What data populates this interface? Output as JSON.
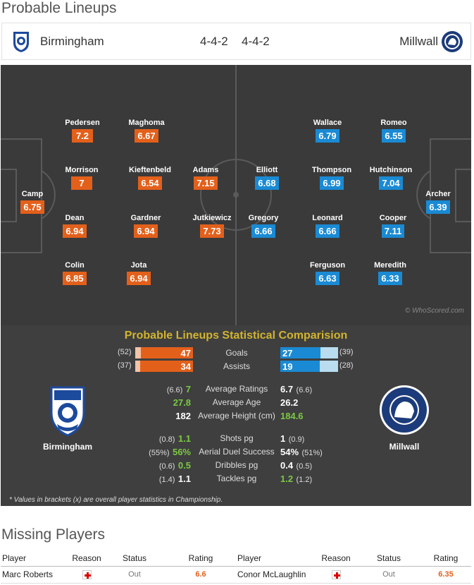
{
  "lineups_title": "Probable Lineups",
  "home_team": {
    "name": "Birmingham",
    "formation": "4-4-2",
    "crest": "birmingham-crest-icon"
  },
  "away_team": {
    "name": "Millwall",
    "formation": "4-4-2",
    "crest": "millwall-crest-icon"
  },
  "home_players": [
    {
      "name": "Pedersen",
      "rating": "7.2"
    },
    {
      "name": "Maghoma",
      "rating": "6.67"
    },
    {
      "name": "Morrison",
      "rating": "7"
    },
    {
      "name": "Kieftenbeld",
      "rating": "6.54"
    },
    {
      "name": "Adams",
      "rating": "7.15"
    },
    {
      "name": "Camp",
      "rating": "6.75"
    },
    {
      "name": "Dean",
      "rating": "6.94"
    },
    {
      "name": "Gardner",
      "rating": "6.94"
    },
    {
      "name": "Jutkiewicz",
      "rating": "7.73"
    },
    {
      "name": "Colin",
      "rating": "6.85"
    },
    {
      "name": "Jota",
      "rating": "6.94"
    }
  ],
  "away_players": [
    {
      "name": "Wallace",
      "rating": "6.79"
    },
    {
      "name": "Romeo",
      "rating": "6.55"
    },
    {
      "name": "Elliott",
      "rating": "6.68"
    },
    {
      "name": "Thompson",
      "rating": "6.99"
    },
    {
      "name": "Hutchinson",
      "rating": "7.04"
    },
    {
      "name": "Archer",
      "rating": "6.39"
    },
    {
      "name": "Gregory",
      "rating": "6.66"
    },
    {
      "name": "Leonard",
      "rating": "6.66"
    },
    {
      "name": "Cooper",
      "rating": "7.11"
    },
    {
      "name": "Ferguson",
      "rating": "6.63"
    },
    {
      "name": "Meredith",
      "rating": "6.33"
    }
  ],
  "watermark": "© WhoScored.com",
  "comparison": {
    "title": "Probable Lineups Statistical Comparision",
    "goals": {
      "label": "Goals",
      "home": "47",
      "home_overall": "(52)",
      "home_fraction": 0.9,
      "away": "27",
      "away_overall": "(39)",
      "away_fraction": 0.69
    },
    "assists": {
      "label": "Assists",
      "home": "34",
      "home_overall": "(37)",
      "home_fraction": 0.92,
      "away": "19",
      "away_overall": "(28)",
      "away_fraction": 0.68
    },
    "average_ratings": {
      "label": "Average Ratings",
      "home_overall": "(6.6)",
      "home": "7",
      "away": "6.7",
      "away_overall": "(6.6)"
    },
    "average_age": {
      "label": "Average Age",
      "home": "27.8",
      "away": "26.2"
    },
    "average_height": {
      "label": "Average Height (cm)",
      "home": "182",
      "away": "184.6"
    },
    "shots": {
      "label": "Shots pg",
      "home_overall": "(0.8)",
      "home": "1.1",
      "away": "1",
      "away_overall": "(0.9)"
    },
    "aerial": {
      "label": "Aerial Duel Success",
      "home_overall": "(55%)",
      "home": "56%",
      "away": "54%",
      "away_overall": "(51%)"
    },
    "dribbles": {
      "label": "Dribbles pg",
      "home_overall": "(0.6)",
      "home": "0.5",
      "away": "0.4",
      "away_overall": "(0.5)"
    },
    "tackles": {
      "label": "Tackles pg",
      "home_overall": "(1.4)",
      "home": "1.1",
      "away": "1.2",
      "away_overall": "(1.2)"
    },
    "footnote": "* Values in brackets (x) are overall player statistics in Championship."
  },
  "missing_title": "Missing Players",
  "missing_headers": {
    "player": "Player",
    "reason": "Reason",
    "status": "Status",
    "rating": "Rating"
  },
  "missing_home": [
    {
      "player": "Marc Roberts",
      "reason": "injury-icon",
      "status": "Out",
      "rating": "6.6"
    }
  ],
  "missing_away": [
    {
      "player": "Conor McLaughlin",
      "reason": "injury-icon",
      "status": "Out",
      "rating": "6.35"
    }
  ],
  "colors": {
    "home_accent": "#e3601b",
    "away_accent": "#1a8ad4",
    "title_gold": "#d1b42f",
    "better_green": "#7ac943",
    "pitch": "#3a3a3a"
  }
}
